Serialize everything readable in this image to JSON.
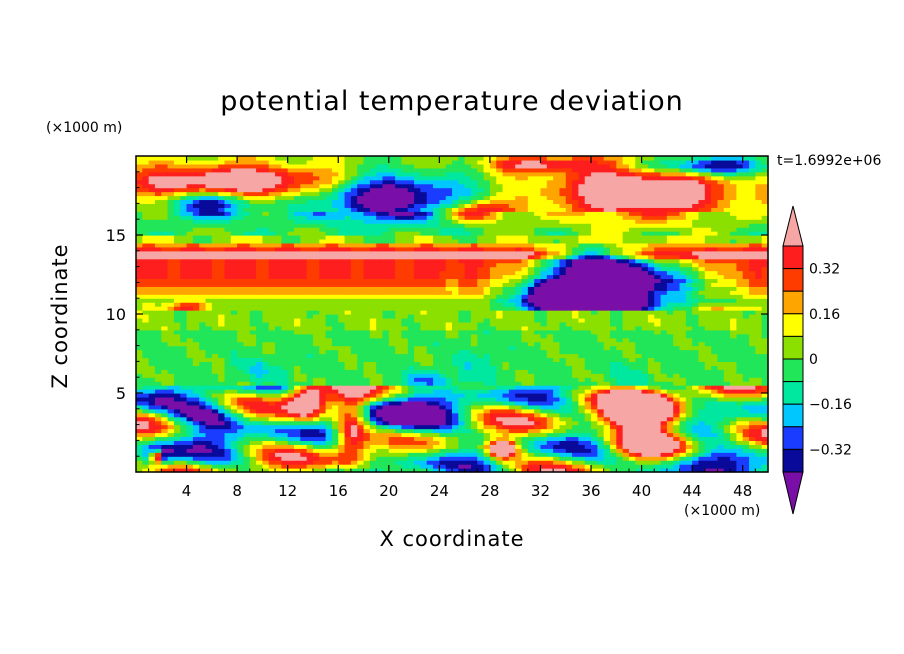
{
  "chart_data": {
    "type": "heatmap",
    "title": "potential temperature deviation",
    "xlabel": "X coordinate",
    "ylabel": "Z coordinate",
    "x_unit": "(×1000 m)",
    "y_unit": "(×1000 m)",
    "time_label": "t=1.6992e+06",
    "xlim": [
      0,
      50
    ],
    "ylim": [
      0,
      20
    ],
    "x_ticks": [
      "4",
      "8",
      "12",
      "16",
      "20",
      "24",
      "28",
      "32",
      "36",
      "40",
      "44",
      "48"
    ],
    "y_ticks": [
      "5",
      "10",
      "15"
    ],
    "colorbar": {
      "levels": [
        -0.4,
        -0.32,
        -0.24,
        -0.16,
        -0.08,
        0,
        0.08,
        0.16,
        0.24,
        0.32,
        0.4
      ],
      "tick_labels": [
        "0.32",
        "0.16",
        "0",
        "−0.16",
        "−0.32"
      ],
      "colors": [
        "#7a0fa8",
        "#0a0a9a",
        "#1a3cff",
        "#00c8ff",
        "#00e8a0",
        "#22e65a",
        "#8be000",
        "#ffff00",
        "#ffa500",
        "#ff3c00",
        "#ff1e1e",
        "#f7a6a6"
      ]
    }
  }
}
